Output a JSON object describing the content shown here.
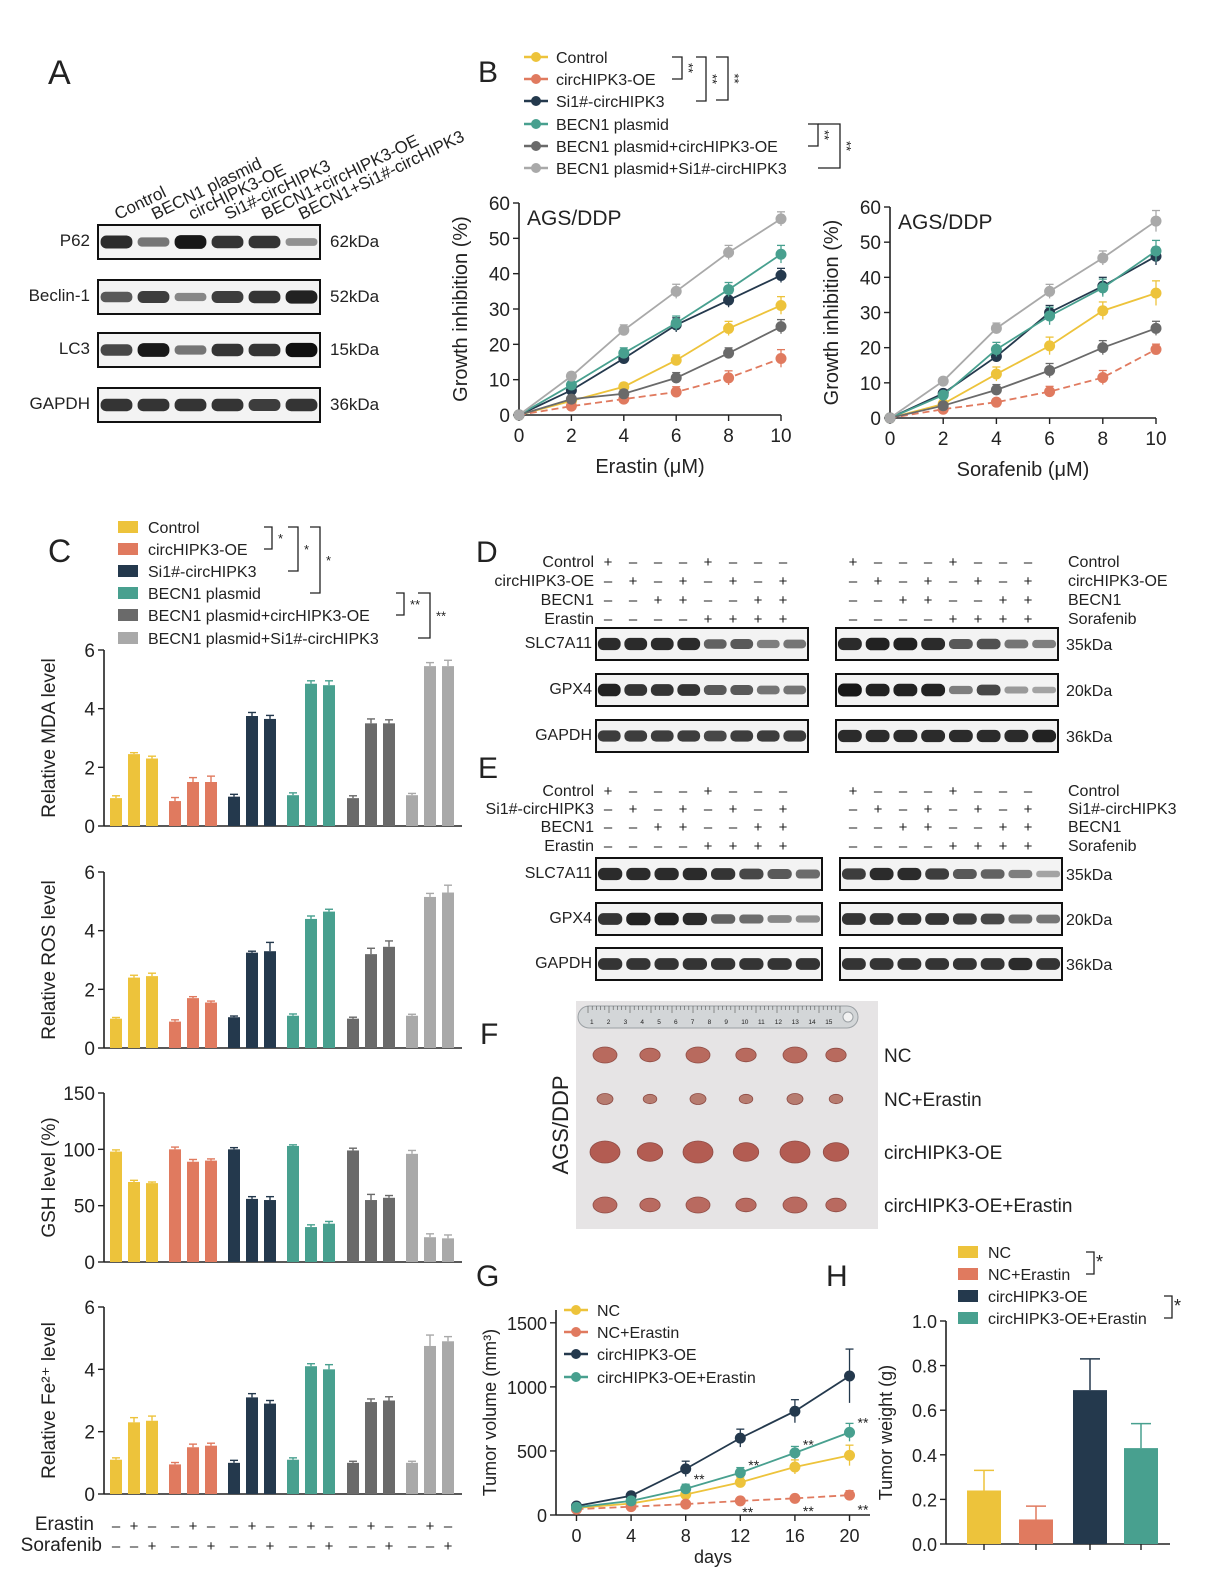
{
  "colors": {
    "control": "#EDC33B",
    "circ_oe": "#E07A5F",
    "si1": "#24394D",
    "becn1": "#48A08F",
    "becn1_oe": "#6A6A6A",
    "becn1_si": "#A9A9A9"
  },
  "groups": [
    "Control",
    "circHIPK3-OE",
    "Si1#-circHIPK3",
    "BECN1 plasmid",
    "BECN1 plasmid+circHIPK3-OE",
    "BECN1 plasmid+Si1#-circHIPK3"
  ],
  "panels": {
    "A": "A",
    "B": "B",
    "C": "C",
    "D": "D",
    "E": "E",
    "F": "F",
    "G": "G",
    "H": "H"
  },
  "panelA": {
    "lanes": [
      "Control",
      "BECN1 plasmid",
      "circHIPK3-OE",
      "Si1#-circHIPK3",
      "BECN1+circHIPK3-OE",
      "BECN1+Si1#-circHIPK3"
    ],
    "blots": [
      {
        "name": "P62",
        "size": "62kDa"
      },
      {
        "name": "Beclin-1",
        "size": "52kDa"
      },
      {
        "name": "LC3",
        "size": "15kDa"
      },
      {
        "name": "GAPDH",
        "size": "36kDa"
      }
    ]
  },
  "sig": {
    "double": "**",
    "single": "*"
  },
  "panelD": {
    "rows_left": [
      "Control",
      "circHIPK3-OE",
      "BECN1",
      "Erastin"
    ],
    "rows_right": [
      "Control",
      "circHIPK3-OE",
      "BECN1",
      "Sorafenib"
    ],
    "signs": [
      [
        "+",
        "–",
        "–",
        "–",
        "+",
        "–",
        "–",
        "–"
      ],
      [
        "–",
        "+",
        "–",
        "+",
        "–",
        "+",
        "–",
        "+"
      ],
      [
        "–",
        "–",
        "+",
        "+",
        "–",
        "–",
        "+",
        "+"
      ],
      [
        "–",
        "–",
        "–",
        "–",
        "+",
        "+",
        "+",
        "+"
      ]
    ],
    "blots": [
      {
        "name": "SLC7A11",
        "size": "35kDa"
      },
      {
        "name": "GPX4",
        "size": "20kDa"
      },
      {
        "name": "GAPDH",
        "size": "36kDa"
      }
    ]
  },
  "panelE": {
    "rows_left": [
      "Control",
      "Si1#-circHIPK3",
      "BECN1",
      "Erastin"
    ],
    "rows_right": [
      "Control",
      "Si1#-circHIPK3",
      "BECN1",
      "Sorafenib"
    ],
    "signs": [
      [
        "+",
        "–",
        "–",
        "–",
        "+",
        "–",
        "–",
        "–"
      ],
      [
        "–",
        "+",
        "–",
        "+",
        "–",
        "+",
        "–",
        "+"
      ],
      [
        "–",
        "–",
        "+",
        "+",
        "–",
        "–",
        "+",
        "+"
      ],
      [
        "–",
        "–",
        "–",
        "–",
        "+",
        "+",
        "+",
        "+"
      ]
    ],
    "blots": [
      {
        "name": "SLC7A11",
        "size": "35kDa"
      },
      {
        "name": "GPX4",
        "size": "20kDa"
      },
      {
        "name": "GAPDH",
        "size": "36kDa"
      }
    ]
  },
  "panelF": {
    "side_label": "AGS/DDP",
    "rows": [
      "NC",
      "NC+Erastin",
      "circHIPK3-OE",
      "circHIPK3-OE+Erastin"
    ],
    "ruler_ticks": [
      "1",
      "2",
      "3",
      "4",
      "5",
      "6",
      "7",
      "8",
      "9",
      "10",
      "11",
      "12",
      "13",
      "14",
      "15"
    ]
  },
  "treatment_labels": {
    "erastin": "Erastin",
    "sorafenib": "Sorafenib"
  },
  "chart_data": [
    {
      "id": "B-left",
      "type": "line",
      "annotation": "AGS/DDP",
      "xlabel": "Erastin (μM)",
      "ylabel": "Growth inhibition (%)",
      "x": [
        0,
        2,
        4,
        6,
        8,
        10
      ],
      "xlim": [
        0,
        10
      ],
      "ylim": [
        0,
        60
      ],
      "xticks": [
        0,
        2,
        4,
        6,
        8,
        10
      ],
      "yticks": [
        0,
        10,
        20,
        30,
        40,
        50,
        60
      ],
      "series": [
        {
          "name": "Control",
          "values": [
            0,
            4,
            8,
            15.5,
            24.5,
            31
          ],
          "err": [
            0,
            0.8,
            1,
            1.5,
            2,
            2.5
          ]
        },
        {
          "name": "circHIPK3-OE",
          "values": [
            0,
            2.5,
            4.5,
            6.5,
            10.5,
            16
          ],
          "err": [
            0,
            0.8,
            1,
            1.5,
            2,
            2.5
          ]
        },
        {
          "name": "Si1#-circHIPK3",
          "values": [
            0,
            7,
            16,
            25.5,
            32.5,
            39.5
          ],
          "err": [
            0,
            1,
            1.5,
            2,
            2,
            2
          ]
        },
        {
          "name": "BECN1 plasmid",
          "values": [
            0,
            8.5,
            17.5,
            26,
            35.5,
            45.5
          ],
          "err": [
            0,
            1,
            1.5,
            2,
            2,
            2.5
          ]
        },
        {
          "name": "BECN1 plasmid+circHIPK3-OE",
          "values": [
            0,
            4.5,
            6,
            10.5,
            17.5,
            25
          ],
          "err": [
            0,
            0.8,
            1,
            1.5,
            1.5,
            2
          ]
        },
        {
          "name": "BECN1 plasmid+Si1#-circHIPK3",
          "values": [
            0,
            11,
            24,
            35,
            46,
            55.5
          ],
          "err": [
            0,
            1,
            1.5,
            2,
            2,
            2
          ]
        }
      ]
    },
    {
      "id": "B-right",
      "type": "line",
      "annotation": "AGS/DDP",
      "xlabel": "Sorafenib (μM)",
      "ylabel": "Growth inhibition (%)",
      "x": [
        0,
        2,
        4,
        6,
        8,
        10
      ],
      "xlim": [
        0,
        10
      ],
      "ylim": [
        0,
        60
      ],
      "xticks": [
        0,
        2,
        4,
        6,
        8,
        10
      ],
      "yticks": [
        0,
        10,
        20,
        30,
        40,
        50,
        60
      ],
      "series": [
        {
          "name": "Control",
          "values": [
            0,
            4,
            12.5,
            20.5,
            30.5,
            35.5
          ],
          "err": [
            0,
            0.8,
            2,
            2.5,
            2.5,
            3.5
          ]
        },
        {
          "name": "circHIPK3-OE",
          "values": [
            0,
            2.5,
            4.5,
            7.5,
            11.5,
            19.5
          ],
          "err": [
            0,
            0.8,
            1,
            1.5,
            2,
            1.5
          ]
        },
        {
          "name": "Si1#-circHIPK3",
          "values": [
            0,
            7,
            17.5,
            30,
            37.5,
            46
          ],
          "err": [
            0,
            0.8,
            1.5,
            2,
            2.5,
            2.5
          ]
        },
        {
          "name": "BECN1 plasmid",
          "values": [
            0,
            6.5,
            19.5,
            29,
            37,
            47.5
          ],
          "err": [
            0,
            0.8,
            2,
            2.5,
            2.5,
            3
          ]
        },
        {
          "name": "BECN1 plasmid+circHIPK3-OE",
          "values": [
            0,
            3.5,
            8,
            13.5,
            20,
            25.5
          ],
          "err": [
            0,
            0.8,
            1.5,
            2,
            2,
            2
          ]
        },
        {
          "name": "BECN1 plasmid+Si1#-circHIPK3",
          "values": [
            0,
            10.5,
            25.5,
            36,
            45.5,
            56
          ],
          "err": [
            0,
            0.8,
            1.5,
            2,
            2,
            3
          ]
        }
      ]
    },
    {
      "id": "C-MDA",
      "type": "bar",
      "ylabel": "Relative MDA level",
      "ylim": [
        0,
        6
      ],
      "yticks": [
        0,
        2,
        4,
        6
      ],
      "values": [
        [
          0.95,
          2.45,
          2.3
        ],
        [
          0.85,
          1.5,
          1.5
        ],
        [
          1.0,
          3.75,
          3.65
        ],
        [
          1.05,
          4.85,
          4.8
        ],
        [
          0.95,
          3.5,
          3.5
        ],
        [
          1.05,
          5.45,
          5.45
        ]
      ],
      "err": [
        [
          0.08,
          0.05,
          0.08
        ],
        [
          0.12,
          0.15,
          0.2
        ],
        [
          0.08,
          0.12,
          0.12
        ],
        [
          0.08,
          0.1,
          0.15
        ],
        [
          0.08,
          0.15,
          0.12
        ],
        [
          0.06,
          0.12,
          0.2
        ]
      ]
    },
    {
      "id": "C-ROS",
      "type": "bar",
      "ylabel": "Relative ROS level",
      "ylim": [
        0,
        6
      ],
      "yticks": [
        0,
        2,
        4,
        6
      ],
      "values": [
        [
          1.0,
          2.4,
          2.45
        ],
        [
          0.9,
          1.7,
          1.55
        ],
        [
          1.05,
          3.25,
          3.3
        ],
        [
          1.1,
          4.4,
          4.65
        ],
        [
          1.0,
          3.2,
          3.45
        ],
        [
          1.1,
          5.15,
          5.3
        ]
      ],
      "err": [
        [
          0.04,
          0.08,
          0.1
        ],
        [
          0.06,
          0.05,
          0.05
        ],
        [
          0.04,
          0.05,
          0.3
        ],
        [
          0.06,
          0.1,
          0.08
        ],
        [
          0.05,
          0.2,
          0.2
        ],
        [
          0.05,
          0.12,
          0.25
        ]
      ]
    },
    {
      "id": "C-GSH",
      "type": "bar",
      "ylabel": "GSH level (%)",
      "ylim": [
        0,
        150
      ],
      "yticks": [
        0,
        50,
        100,
        150
      ],
      "values": [
        [
          98,
          71,
          70
        ],
        [
          100,
          89,
          90
        ],
        [
          100,
          56,
          55
        ],
        [
          103,
          31,
          34
        ],
        [
          99,
          55,
          57
        ],
        [
          96,
          22,
          21
        ]
      ],
      "err": [
        [
          1.5,
          1.5,
          1
        ],
        [
          2,
          2,
          1.5
        ],
        [
          1.5,
          2,
          3
        ],
        [
          1,
          2,
          2
        ],
        [
          2,
          5,
          2
        ],
        [
          3,
          3,
          3
        ]
      ]
    },
    {
      "id": "C-Fe",
      "type": "bar",
      "ylabel": "Relative Fe²⁺ level",
      "ylim": [
        0,
        6
      ],
      "yticks": [
        0,
        2,
        4,
        6
      ],
      "values": [
        [
          1.1,
          2.3,
          2.35
        ],
        [
          0.95,
          1.5,
          1.55
        ],
        [
          1.0,
          3.1,
          2.9
        ],
        [
          1.1,
          4.1,
          4.0
        ],
        [
          1.0,
          2.95,
          3.0
        ],
        [
          1.0,
          4.75,
          4.9
        ]
      ],
      "err": [
        [
          0.06,
          0.15,
          0.15
        ],
        [
          0.06,
          0.1,
          0.08
        ],
        [
          0.08,
          0.12,
          0.1
        ],
        [
          0.06,
          0.08,
          0.15
        ],
        [
          0.05,
          0.1,
          0.12
        ],
        [
          0.05,
          0.35,
          0.15
        ]
      ]
    },
    {
      "id": "G",
      "type": "line",
      "xlabel": "days",
      "ylabel": "Tumor volume (mm³)",
      "x": [
        0,
        4,
        8,
        12,
        16,
        20
      ],
      "xlim": [
        -1.5,
        21.5
      ],
      "ylim": [
        0,
        1600
      ],
      "xticks": [
        0,
        4,
        8,
        12,
        16,
        20
      ],
      "yticks": [
        0,
        500,
        1000,
        1500
      ],
      "series": [
        {
          "name": "NC",
          "values": [
            55,
            90,
            160,
            255,
            375,
            465
          ],
          "err": [
            10,
            15,
            30,
            40,
            55,
            80
          ]
        },
        {
          "name": "NC+Erastin",
          "values": [
            45,
            65,
            85,
            110,
            130,
            155
          ],
          "err": [
            8,
            10,
            15,
            20,
            25,
            35
          ]
        },
        {
          "name": "circHIPK3-OE",
          "values": [
            70,
            150,
            360,
            600,
            810,
            1085
          ],
          "err": [
            10,
            20,
            60,
            70,
            90,
            210
          ]
        },
        {
          "name": "circHIPK3-OE+Erastin",
          "values": [
            60,
            110,
            205,
            330,
            485,
            645
          ],
          "err": [
            10,
            15,
            35,
            40,
            50,
            70
          ]
        }
      ],
      "annotations": [
        "**",
        "**",
        "**",
        "**",
        "**",
        "**",
        "**",
        "**"
      ]
    },
    {
      "id": "H",
      "type": "bar",
      "ylabel": "Tumor weight (g)",
      "ylim": [
        0,
        1.0
      ],
      "yticks": [
        0.0,
        0.2,
        0.4,
        0.6,
        0.8,
        1.0
      ],
      "categories": [
        "NC",
        "NC+Erastin",
        "circHIPK3-OE",
        "circHIPK3-OE+Erastin"
      ],
      "values": [
        0.24,
        0.11,
        0.69,
        0.43
      ],
      "err": [
        0.09,
        0.06,
        0.14,
        0.11
      ]
    }
  ]
}
